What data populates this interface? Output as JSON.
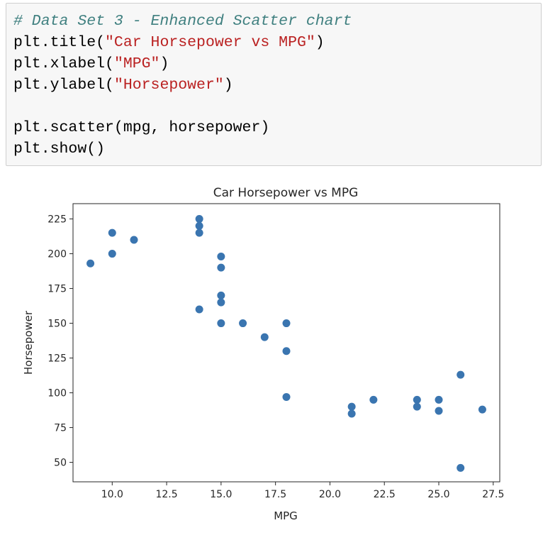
{
  "code": {
    "comment": "# Data Set 3 - Enhanced Scatter chart",
    "title_call": {
      "pre": "plt.title(",
      "arg": "\"Car Horsepower vs MPG\"",
      "post": ")"
    },
    "xlabel_call": {
      "pre": "plt.xlabel(",
      "arg": "\"MPG\"",
      "post": ")"
    },
    "ylabel_call": {
      "pre": "plt.ylabel(",
      "arg": "\"Horsepower\"",
      "post": ")"
    },
    "scatter_call": "plt.scatter(mpg, horsepower)",
    "show_call": "plt.show()"
  },
  "chart_data": {
    "type": "scatter",
    "title": "Car Horsepower vs MPG",
    "xlabel": "MPG",
    "ylabel": "Horsepower",
    "xlim": [
      8.2,
      27.8
    ],
    "ylim": [
      36,
      236
    ],
    "xticks": [
      10.0,
      12.5,
      15.0,
      17.5,
      20.0,
      22.5,
      25.0,
      27.5
    ],
    "xtick_labels": [
      "10.0",
      "12.5",
      "15.0",
      "17.5",
      "20.0",
      "22.5",
      "25.0",
      "27.5"
    ],
    "yticks": [
      50,
      75,
      100,
      125,
      150,
      175,
      200,
      225
    ],
    "ytick_labels": [
      "50",
      "75",
      "100",
      "125",
      "150",
      "175",
      "200",
      "225"
    ],
    "grid": false,
    "marker_color": "#3a75b0",
    "points": [
      {
        "x": 9,
        "y": 193
      },
      {
        "x": 10,
        "y": 215
      },
      {
        "x": 10,
        "y": 200
      },
      {
        "x": 11,
        "y": 210
      },
      {
        "x": 14,
        "y": 225
      },
      {
        "x": 14,
        "y": 220
      },
      {
        "x": 14,
        "y": 215
      },
      {
        "x": 14,
        "y": 160
      },
      {
        "x": 15,
        "y": 198
      },
      {
        "x": 15,
        "y": 190
      },
      {
        "x": 15,
        "y": 170
      },
      {
        "x": 15,
        "y": 165
      },
      {
        "x": 15,
        "y": 150
      },
      {
        "x": 16,
        "y": 150
      },
      {
        "x": 17,
        "y": 140
      },
      {
        "x": 18,
        "y": 150
      },
      {
        "x": 18,
        "y": 130
      },
      {
        "x": 18,
        "y": 97
      },
      {
        "x": 21,
        "y": 90
      },
      {
        "x": 21,
        "y": 85
      },
      {
        "x": 22,
        "y": 95
      },
      {
        "x": 24,
        "y": 95
      },
      {
        "x": 24,
        "y": 90
      },
      {
        "x": 25,
        "y": 95
      },
      {
        "x": 25,
        "y": 87
      },
      {
        "x": 26,
        "y": 113
      },
      {
        "x": 26,
        "y": 46
      },
      {
        "x": 27,
        "y": 88
      }
    ]
  }
}
